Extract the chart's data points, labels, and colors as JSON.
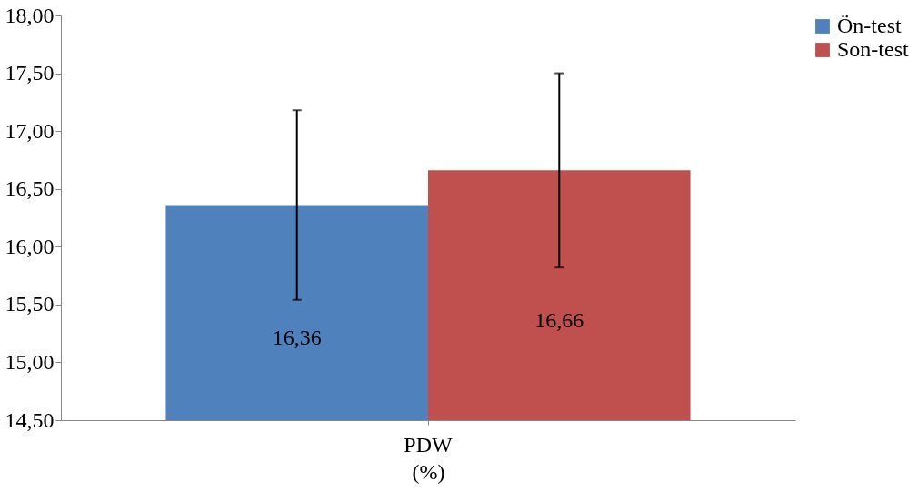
{
  "chart_data": {
    "type": "bar",
    "categories": [
      "PDW"
    ],
    "xlabel": "(%)",
    "series": [
      {
        "name": "Ön-test",
        "color": "#4f81bd",
        "values": [
          16.36
        ],
        "errors": [
          0.82
        ],
        "value_labels": [
          "16,36"
        ]
      },
      {
        "name": "Son-test",
        "color": "#c0504d",
        "values": [
          16.66
        ],
        "errors": [
          0.84
        ],
        "value_labels": [
          "16,66"
        ]
      }
    ],
    "ylim": [
      14.5,
      18
    ],
    "yticks": [
      {
        "value": 14.5,
        "label": "14,50"
      },
      {
        "value": 15,
        "label": "15,00"
      },
      {
        "value": 15.5,
        "label": "15,50"
      },
      {
        "value": 16,
        "label": "16,00"
      },
      {
        "value": 16.5,
        "label": "16,50"
      },
      {
        "value": 17,
        "label": "17,00"
      },
      {
        "value": 17.5,
        "label": "17,50"
      },
      {
        "value": 18,
        "label": "18,00"
      }
    ],
    "grid": false,
    "legend": "right"
  }
}
